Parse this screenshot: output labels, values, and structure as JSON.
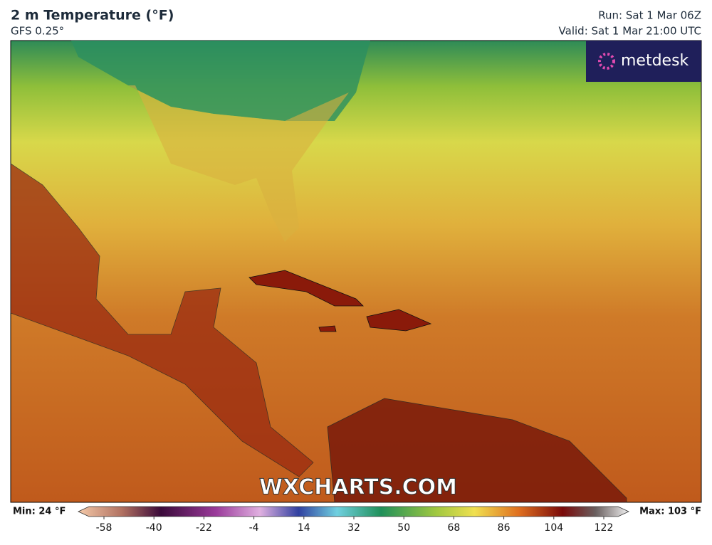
{
  "header": {
    "title": "2 m Temperature (°F)",
    "subtitle": "GFS 0.25°",
    "run": "Run: Sat 1 Mar 06Z",
    "valid": "Valid: Sat 1 Mar 21:00 UTC"
  },
  "logo": "metdesk",
  "watermark": "WXCHARTS.COM",
  "legend": {
    "min_label": "Min: 24 °F",
    "max_label": "Max: 103 °F",
    "ticks": [
      -58,
      -40,
      -22,
      -4,
      14,
      32,
      50,
      68,
      86,
      104,
      122
    ]
  }
}
